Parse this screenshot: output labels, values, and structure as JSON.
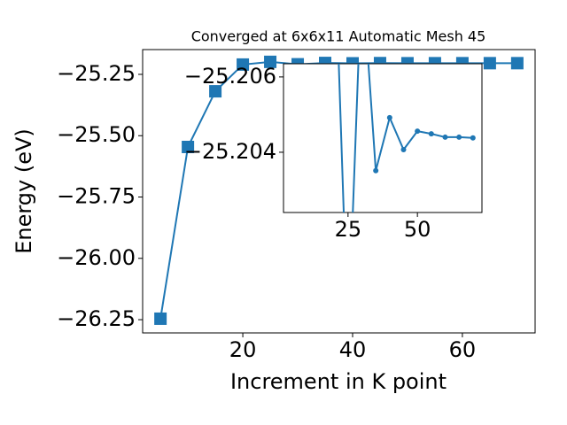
{
  "chart_data": {
    "type": "line",
    "title": "Converged at 6x6x11 Automatic Mesh 45",
    "x_label": "Increment in K point",
    "y_label": "Energy (eV)",
    "x": [
      5,
      10,
      15,
      20,
      25,
      30,
      35,
      40,
      45,
      50,
      55,
      60,
      65,
      70
    ],
    "values": [
      -26.246,
      -25.546,
      -25.319,
      -25.21,
      -25.199,
      -25.20885,
      -25.20351,
      -25.20492,
      -25.20407,
      -25.20456,
      -25.20449,
      -25.2044,
      -25.2044,
      -25.20438
    ],
    "color": "#1f77b4",
    "xlim": [
      1.75,
      73.25
    ],
    "ylim": [
      -26.304,
      -25.149
    ],
    "xticks": [
      20,
      40,
      60
    ],
    "yticks": [
      {
        "value": -26.25,
        "label": "−26.25"
      },
      {
        "value": -26.0,
        "label": "−26.00"
      },
      {
        "value": -25.75,
        "label": "−25.75"
      },
      {
        "value": -25.5,
        "label": "−25.50"
      },
      {
        "value": -25.25,
        "label": "−25.25"
      }
    ],
    "inset": {
      "xlim": [
        1.75,
        73.25
      ],
      "ylim": [
        -25.2024,
        -25.20635
      ],
      "xticks": [
        25,
        50
      ],
      "yticks": [
        {
          "value": -25.206,
          "label": "−25.206"
        },
        {
          "value": -25.204,
          "label": "−25.204"
        }
      ]
    }
  }
}
